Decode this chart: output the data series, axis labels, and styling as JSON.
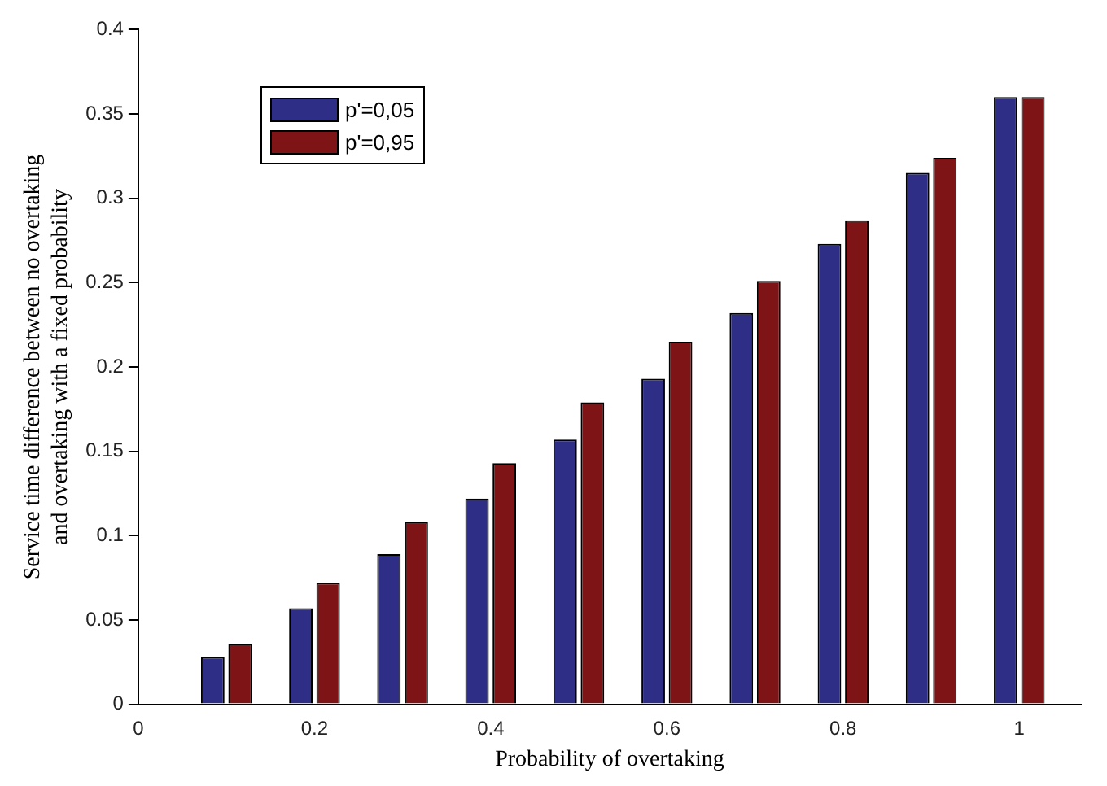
{
  "chart_data": {
    "type": "bar",
    "xlabel": "Probability of overtaking",
    "ylabel": "Service time difference between no overtaking\nand overtaking with a fixed probability",
    "x": [
      0.1,
      0.2,
      0.3,
      0.4,
      0.5,
      0.6,
      0.7,
      0.8,
      0.9,
      1.0
    ],
    "series": [
      {
        "name": "p'=0,05",
        "color": "#2e2e86",
        "values": [
          0.028,
          0.057,
          0.089,
          0.122,
          0.157,
          0.193,
          0.232,
          0.273,
          0.315,
          0.36
        ]
      },
      {
        "name": "p'=0,95",
        "color": "#7f1416",
        "values": [
          0.036,
          0.072,
          0.108,
          0.143,
          0.179,
          0.215,
          0.251,
          0.287,
          0.324,
          0.36
        ]
      }
    ],
    "xlim": [
      0,
      1.07
    ],
    "xticks": [
      0,
      0.2,
      0.4,
      0.6,
      0.8,
      1
    ],
    "ylim": [
      0,
      0.4
    ],
    "yticks": [
      0,
      0.05,
      0.1,
      0.15,
      0.2,
      0.25,
      0.3,
      0.35,
      0.4
    ],
    "grid": false,
    "legend": "top left"
  }
}
